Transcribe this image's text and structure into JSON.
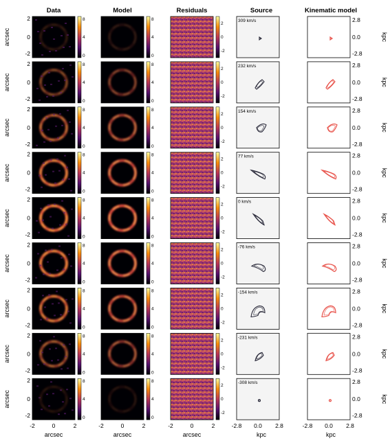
{
  "columns": {
    "data": "Data",
    "model": "Model",
    "residuals": "Residuals",
    "source": "Source",
    "kinematic": "Kinematic model"
  },
  "axes": {
    "arcsec_label": "arcsec",
    "kpc_label": "kpc",
    "arcsec_ticks": [
      "-2",
      "0",
      "2"
    ],
    "kpc_ticks": [
      "-2.8",
      "0.0",
      "2.8"
    ]
  },
  "colorbars": {
    "flux_ticks": [
      "8",
      "4",
      "0"
    ],
    "residual_ticks": [
      "2",
      "0",
      "-2"
    ]
  },
  "velocities": [
    "309 km/s",
    "232 km/s",
    "154 km/s",
    "77 km/s",
    "0 km/s",
    "-76 km/s",
    "-154 km/s",
    "-231 km/s",
    "-308 km/s"
  ],
  "colors": {
    "background_dark": "#0a0514",
    "ring_bright": "#f7d13d",
    "source_contour": "#2a2a3a",
    "kinematic_contour": "#e8524a"
  },
  "chart_data": {
    "type": "heatmap",
    "panels_per_row": [
      "Data",
      "Model",
      "Residuals",
      "Source",
      "Kinematic model"
    ],
    "rows": 9,
    "velocity_channels_kms": [
      309,
      232,
      154,
      77,
      0,
      -76,
      -154,
      -231,
      -308
    ],
    "image_extent_arcsec": [
      -2.5,
      2.5
    ],
    "source_extent_kpc": [
      -3.5,
      3.5
    ],
    "flux_colorbar_range": [
      0,
      8
    ],
    "residual_colorbar_range": [
      -3,
      3
    ]
  }
}
